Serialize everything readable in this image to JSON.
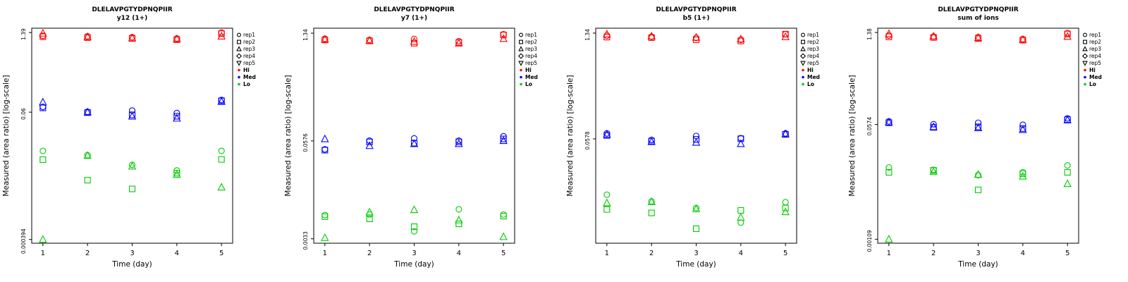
{
  "page": {
    "background": "#FFFFFF"
  },
  "colors": {
    "hi": "#FF0000",
    "med": "#0000FF",
    "lo": "#00CC00",
    "axis": "#000000"
  },
  "legend": {
    "shape_items": [
      {
        "label": "rep1",
        "marker": "circle"
      },
      {
        "label": "rep2",
        "marker": "square"
      },
      {
        "label": "rep3",
        "marker": "triangle"
      },
      {
        "label": "rep4",
        "marker": "diamond"
      },
      {
        "label": "rep5",
        "marker": "triangle-down"
      }
    ],
    "color_items": [
      {
        "label": "Hi",
        "color": "#FF0000"
      },
      {
        "label": "Med",
        "color": "#0000FF"
      },
      {
        "label": "Lo",
        "color": "#00CC00"
      }
    ]
  },
  "chart_data": [
    {
      "type": "scatter",
      "title": "DLELAVPGTYDPNQPIIR",
      "subtitle": "y12 (1+)",
      "xlabel": "Time (day)",
      "ylabel": "Measured (area ratio) [log-scale]",
      "x": [
        1,
        2,
        3,
        4,
        5
      ],
      "xlim": [
        0.75,
        5.25
      ],
      "ylog": true,
      "ylim": [
        0.00034,
        1.65
      ],
      "yticks": [
        {
          "value": 1.39,
          "label": "1.39"
        },
        {
          "value": 0.06,
          "label": "0.06"
        },
        {
          "value": 0.000394,
          "label": "0.000394"
        }
      ],
      "series": [
        {
          "rep": "rep1",
          "level": "Hi",
          "marker": "circle",
          "color": "#FF0000",
          "values": [
            1.22,
            1.2,
            1.16,
            1.1,
            1.39
          ]
        },
        {
          "rep": "rep2",
          "level": "Hi",
          "marker": "square",
          "color": "#FF0000",
          "values": [
            1.18,
            1.14,
            1.1,
            1.05,
            1.33
          ]
        },
        {
          "rep": "rep3",
          "level": "Hi",
          "marker": "triangle",
          "color": "#FF0000",
          "values": [
            1.35,
            1.17,
            1.12,
            1.08,
            1.2
          ]
        },
        {
          "rep": "rep1",
          "level": "Med",
          "marker": "circle",
          "color": "#0000FF",
          "values": [
            0.074,
            0.061,
            0.064,
            0.058,
            0.097
          ]
        },
        {
          "rep": "rep2",
          "level": "Med",
          "marker": "square",
          "color": "#0000FF",
          "values": [
            0.071,
            0.059,
            0.054,
            0.051,
            0.094
          ]
        },
        {
          "rep": "rep3",
          "level": "Med",
          "marker": "triangle",
          "color": "#0000FF",
          "values": [
            0.089,
            0.06,
            0.051,
            0.047,
            0.091
          ]
        },
        {
          "rep": "rep1",
          "level": "Lo",
          "marker": "circle",
          "color": "#00CC00",
          "values": [
            0.013,
            0.011,
            0.0075,
            0.006,
            0.013
          ]
        },
        {
          "rep": "rep2",
          "level": "Lo",
          "marker": "square",
          "color": "#00CC00",
          "values": [
            0.0092,
            0.0041,
            0.0029,
            0.0054,
            0.0093
          ]
        },
        {
          "rep": "rep3",
          "level": "Lo",
          "marker": "triangle",
          "color": "#00CC00",
          "values": [
            0.000394,
            0.0108,
            0.0071,
            0.0051,
            0.0031
          ]
        }
      ]
    },
    {
      "type": "scatter",
      "title": "DLELAVPGTYDPNQPIIR",
      "subtitle": "y7 (1+)",
      "xlabel": "Time (day)",
      "ylabel": "Measured (area ratio) [log-scale]",
      "x": [
        1,
        2,
        3,
        4,
        5
      ],
      "xlim": [
        0.75,
        5.25
      ],
      "ylog": true,
      "ylim": [
        0.0029,
        1.55
      ],
      "yticks": [
        {
          "value": 1.34,
          "label": "1.34"
        },
        {
          "value": 0.0576,
          "label": "0.0576"
        },
        {
          "value": 0.0033,
          "label": "0.0033"
        }
      ],
      "series": [
        {
          "rep": "rep1",
          "level": "Hi",
          "marker": "circle",
          "color": "#FF0000",
          "values": [
            1.14,
            1.1,
            1.13,
            1.06,
            1.3
          ]
        },
        {
          "rep": "rep2",
          "level": "Hi",
          "marker": "square",
          "color": "#FF0000",
          "values": [
            1.1,
            1.07,
            1.0,
            1.02,
            1.27
          ]
        },
        {
          "rep": "rep3",
          "level": "Hi",
          "marker": "triangle",
          "color": "#FF0000",
          "values": [
            1.12,
            1.08,
            1.05,
            1.0,
            1.14
          ]
        },
        {
          "rep": "rep1",
          "level": "Med",
          "marker": "circle",
          "color": "#0000FF",
          "values": [
            0.045,
            0.058,
            0.062,
            0.058,
            0.066
          ]
        },
        {
          "rep": "rep2",
          "level": "Med",
          "marker": "square",
          "color": "#0000FF",
          "values": [
            0.044,
            0.056,
            0.054,
            0.056,
            0.061
          ]
        },
        {
          "rep": "rep3",
          "level": "Med",
          "marker": "triangle",
          "color": "#0000FF",
          "values": [
            0.061,
            0.05,
            0.053,
            0.053,
            0.058
          ]
        },
        {
          "rep": "rep1",
          "level": "Lo",
          "marker": "circle",
          "color": "#00CC00",
          "values": [
            0.0066,
            0.0067,
            0.0041,
            0.0078,
            0.0067
          ]
        },
        {
          "rep": "rep2",
          "level": "Lo",
          "marker": "square",
          "color": "#00CC00",
          "values": [
            0.0063,
            0.0059,
            0.0047,
            0.0051,
            0.0064
          ]
        },
        {
          "rep": "rep3",
          "level": "Lo",
          "marker": "triangle",
          "color": "#00CC00",
          "values": [
            0.0034,
            0.0072,
            0.0077,
            0.0057,
            0.0035
          ]
        }
      ]
    },
    {
      "type": "scatter",
      "title": "DLELAVPGTYDPNQPIIR",
      "subtitle": "b5 (1+)",
      "xlabel": "Time (day)",
      "ylabel": "Measured (area ratio) [log-scale]",
      "x": [
        1,
        2,
        3,
        4,
        5
      ],
      "xlim": [
        0.75,
        5.25
      ],
      "ylog": true,
      "ylim": [
        0.0026,
        1.55
      ],
      "yticks": [
        {
          "value": 1.34,
          "label": "1.34"
        },
        {
          "value": 0.0578,
          "label": "0.0578"
        }
      ],
      "series": [
        {
          "rep": "rep1",
          "level": "Hi",
          "marker": "circle",
          "color": "#FF0000",
          "values": [
            1.24,
            1.2,
            1.16,
            1.1,
            1.3
          ]
        },
        {
          "rep": "rep2",
          "level": "Hi",
          "marker": "square",
          "color": "#FF0000",
          "values": [
            1.19,
            1.17,
            1.1,
            1.06,
            1.3
          ]
        },
        {
          "rep": "rep3",
          "level": "Hi",
          "marker": "triangle",
          "color": "#FF0000",
          "values": [
            1.3,
            1.22,
            1.18,
            1.12,
            1.2
          ]
        },
        {
          "rep": "rep1",
          "level": "Med",
          "marker": "circle",
          "color": "#0000FF",
          "values": [
            0.068,
            0.056,
            0.063,
            0.059,
            0.068
          ]
        },
        {
          "rep": "rep2",
          "level": "Med",
          "marker": "square",
          "color": "#0000FF",
          "values": [
            0.064,
            0.054,
            0.057,
            0.058,
            0.066
          ]
        },
        {
          "rep": "rep3",
          "level": "Med",
          "marker": "triangle",
          "color": "#0000FF",
          "values": [
            0.066,
            0.053,
            0.052,
            0.05,
            0.067
          ]
        },
        {
          "rep": "rep1",
          "level": "Lo",
          "marker": "circle",
          "color": "#00CC00",
          "values": [
            0.011,
            0.009,
            0.0074,
            0.0048,
            0.0088
          ]
        },
        {
          "rep": "rep2",
          "level": "Lo",
          "marker": "square",
          "color": "#00CC00",
          "values": [
            0.0071,
            0.0064,
            0.004,
            0.0069,
            0.0074
          ]
        },
        {
          "rep": "rep3",
          "level": "Lo",
          "marker": "triangle",
          "color": "#00CC00",
          "values": [
            0.0086,
            0.0089,
            0.0072,
            0.0056,
            0.0066
          ]
        }
      ]
    },
    {
      "type": "scatter",
      "title": "DLELAVPGTYDPNQPIIR",
      "subtitle": "sum of ions",
      "xlabel": "Time (day)",
      "ylabel": "Measured (area ratio) [log-scale]",
      "x": [
        1,
        2,
        3,
        4,
        5
      ],
      "xlim": [
        0.75,
        5.25
      ],
      "ylog": true,
      "ylim": [
        0.00095,
        1.6
      ],
      "yticks": [
        {
          "value": 1.38,
          "label": "1.38"
        },
        {
          "value": 0.0574,
          "label": "0.0574"
        },
        {
          "value": 0.00109,
          "label": "0.00109"
        }
      ],
      "series": [
        {
          "rep": "rep1",
          "level": "Hi",
          "marker": "circle",
          "color": "#FF0000",
          "values": [
            1.24,
            1.2,
            1.18,
            1.1,
            1.35
          ]
        },
        {
          "rep": "rep2",
          "level": "Hi",
          "marker": "square",
          "color": "#FF0000",
          "values": [
            1.19,
            1.16,
            1.12,
            1.06,
            1.31
          ]
        },
        {
          "rep": "rep3",
          "level": "Hi",
          "marker": "triangle",
          "color": "#FF0000",
          "values": [
            1.32,
            1.21,
            1.15,
            1.08,
            1.2
          ]
        },
        {
          "rep": "rep1",
          "level": "Med",
          "marker": "circle",
          "color": "#0000FF",
          "values": [
            0.064,
            0.058,
            0.061,
            0.057,
            0.071
          ]
        },
        {
          "rep": "rep2",
          "level": "Med",
          "marker": "square",
          "color": "#0000FF",
          "values": [
            0.061,
            0.052,
            0.053,
            0.05,
            0.068
          ]
        },
        {
          "rep": "rep3",
          "level": "Med",
          "marker": "triangle",
          "color": "#0000FF",
          "values": [
            0.062,
            0.053,
            0.051,
            0.048,
            0.067
          ]
        },
        {
          "rep": "rep1",
          "level": "Lo",
          "marker": "circle",
          "color": "#00CC00",
          "values": [
            0.013,
            0.012,
            0.01,
            0.011,
            0.014
          ]
        },
        {
          "rep": "rep2",
          "level": "Lo",
          "marker": "square",
          "color": "#00CC00",
          "values": [
            0.011,
            0.0118,
            0.006,
            0.0105,
            0.011
          ]
        },
        {
          "rep": "rep3",
          "level": "Lo",
          "marker": "triangle",
          "color": "#00CC00",
          "values": [
            0.00109,
            0.0113,
            0.0102,
            0.0096,
            0.0074
          ]
        }
      ]
    }
  ]
}
